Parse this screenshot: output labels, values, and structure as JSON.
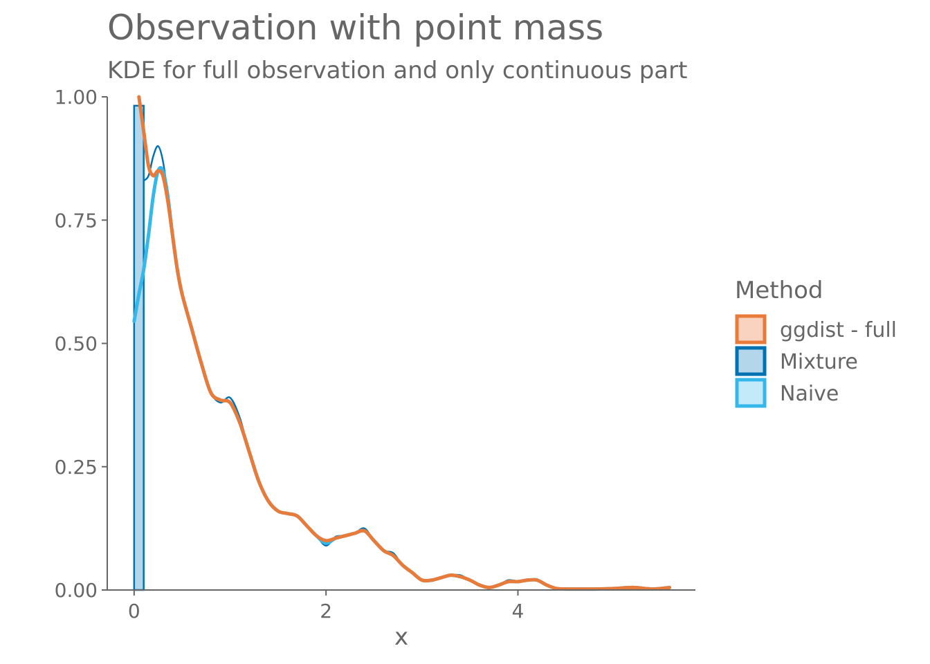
{
  "colors": {
    "text": "#666666",
    "ggdist_full": "#E87A3A",
    "ggdist_full_fill": "#F9D3C0",
    "mixture": "#0072B2",
    "mixture_fill": "#B3D6EA",
    "naive": "#35B7EA",
    "naive_fill": "#C3EAF8"
  },
  "chart_data": {
    "type": "area",
    "title": "Observation with point mass",
    "subtitle": "KDE for full observation and only continuous part",
    "xlabel": "x",
    "ylabel": "",
    "xlim": [
      -0.28,
      5.85
    ],
    "ylim": [
      0,
      1.0
    ],
    "x_ticks": [
      0,
      2,
      4
    ],
    "x_tick_labels": [
      "0",
      "2",
      "4"
    ],
    "y_ticks": [
      0,
      0.25,
      0.5,
      0.75,
      1.0
    ],
    "y_tick_labels": [
      "0.00",
      "0.25",
      "0.50",
      "0.75",
      "1.00"
    ],
    "grid": false,
    "legend": {
      "title": "Method",
      "placement": "right",
      "entries": [
        "ggdist - full",
        "Mixture",
        "Naive"
      ]
    },
    "point_mass_bar": {
      "x0": 0,
      "x1": 0.1,
      "height": 0.982
    },
    "series": [
      {
        "name": "ggdist - full",
        "x": [
          0.05,
          0.1,
          0.15,
          0.2,
          0.25,
          0.3,
          0.35,
          0.4,
          0.45,
          0.5,
          0.6,
          0.7,
          0.8,
          0.9,
          1.0,
          1.1,
          1.2,
          1.3,
          1.4,
          1.5,
          1.6,
          1.7,
          1.8,
          1.9,
          2.0,
          2.1,
          2.2,
          2.3,
          2.4,
          2.5,
          2.6,
          2.7,
          2.8,
          2.9,
          3.0,
          3.1,
          3.2,
          3.3,
          3.4,
          3.5,
          3.6,
          3.7,
          3.8,
          3.9,
          4.0,
          4.1,
          4.2,
          4.3,
          4.4,
          4.5,
          4.6,
          4.8,
          5.0,
          5.2,
          5.4,
          5.58
        ],
        "y": [
          1.0,
          0.93,
          0.86,
          0.84,
          0.85,
          0.84,
          0.79,
          0.72,
          0.65,
          0.6,
          0.53,
          0.46,
          0.4,
          0.385,
          0.38,
          0.34,
          0.28,
          0.22,
          0.18,
          0.16,
          0.155,
          0.15,
          0.13,
          0.11,
          0.1,
          0.105,
          0.11,
          0.115,
          0.12,
          0.1,
          0.08,
          0.07,
          0.05,
          0.035,
          0.02,
          0.02,
          0.025,
          0.03,
          0.027,
          0.02,
          0.01,
          0.005,
          0.01,
          0.017,
          0.017,
          0.02,
          0.02,
          0.01,
          0.003,
          0.002,
          0.002,
          0.002,
          0.003,
          0.005,
          0.002,
          0.005
        ]
      },
      {
        "name": "Mixture",
        "x": [
          0.1,
          0.15,
          0.2,
          0.25,
          0.3,
          0.35,
          0.4,
          0.45,
          0.5,
          0.6,
          0.7,
          0.8,
          0.9,
          1.0,
          1.1,
          1.2,
          1.3,
          1.4,
          1.5,
          1.6,
          1.7,
          1.8,
          1.9,
          2.0,
          2.1,
          2.2,
          2.3,
          2.4,
          2.5,
          2.6,
          2.7,
          2.8,
          2.9,
          3.0,
          3.1,
          3.2,
          3.3,
          3.4,
          3.5,
          3.6,
          3.7,
          3.8,
          3.9,
          4.0,
          4.1,
          4.2,
          4.3,
          4.4,
          4.5,
          4.6,
          4.8,
          5.0,
          5.2,
          5.4,
          5.58
        ],
        "y": [
          0.83,
          0.84,
          0.88,
          0.9,
          0.87,
          0.8,
          0.71,
          0.65,
          0.6,
          0.53,
          0.46,
          0.4,
          0.38,
          0.39,
          0.35,
          0.28,
          0.22,
          0.18,
          0.16,
          0.155,
          0.15,
          0.13,
          0.11,
          0.09,
          0.108,
          0.11,
          0.115,
          0.125,
          0.1,
          0.08,
          0.075,
          0.05,
          0.035,
          0.02,
          0.018,
          0.025,
          0.03,
          0.03,
          0.02,
          0.01,
          0.005,
          0.01,
          0.02,
          0.018,
          0.02,
          0.022,
          0.01,
          0.003,
          0.002,
          0.002,
          0.002,
          0.003,
          0.005,
          0.002,
          0.005
        ]
      },
      {
        "name": "Naive",
        "x": [
          0.0,
          0.05,
          0.1,
          0.15,
          0.2,
          0.25,
          0.3,
          0.35,
          0.4,
          0.45,
          0.5,
          0.6,
          0.7,
          0.8,
          0.9,
          1.0,
          1.1,
          1.2,
          1.3,
          1.4,
          1.5,
          1.6,
          1.7,
          1.8,
          1.9,
          2.0,
          2.1,
          2.2,
          2.3,
          2.4,
          2.5,
          2.6,
          2.7,
          2.8,
          2.9,
          3.0,
          3.1,
          3.2,
          3.3,
          3.4,
          3.5,
          3.6,
          3.7,
          3.8,
          3.9,
          4.0,
          4.1,
          4.2,
          4.3,
          4.4,
          4.5,
          4.6,
          4.8,
          5.0,
          5.2,
          5.4,
          5.58
        ],
        "y": [
          0.545,
          0.6,
          0.65,
          0.72,
          0.8,
          0.85,
          0.85,
          0.8,
          0.72,
          0.65,
          0.6,
          0.53,
          0.46,
          0.4,
          0.385,
          0.38,
          0.34,
          0.28,
          0.22,
          0.18,
          0.16,
          0.155,
          0.15,
          0.13,
          0.11,
          0.095,
          0.105,
          0.11,
          0.115,
          0.12,
          0.1,
          0.08,
          0.07,
          0.05,
          0.035,
          0.02,
          0.02,
          0.025,
          0.03,
          0.027,
          0.02,
          0.01,
          0.005,
          0.01,
          0.017,
          0.017,
          0.02,
          0.02,
          0.01,
          0.003,
          0.002,
          0.002,
          0.002,
          0.003,
          0.005,
          0.002,
          0.005
        ]
      }
    ]
  }
}
